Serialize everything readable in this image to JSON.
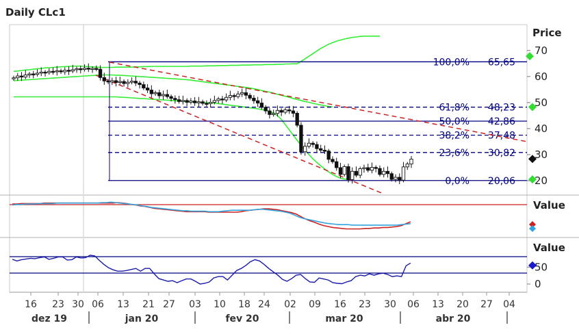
{
  "chart_data": [
    {
      "type": "candlestick",
      "title": "Daily CLc1",
      "y_axis_label": "Price",
      "ylim": [
        14,
        80
      ],
      "y_ticks": [
        20,
        30,
        40,
        50,
        60,
        70
      ],
      "x_day_ticks": [
        "16",
        "23",
        "30",
        "06",
        "13",
        "21",
        "27",
        "03",
        "10",
        "18",
        "24",
        "02",
        "09",
        "16",
        "23",
        "30",
        "06",
        "13",
        "20",
        "27",
        "04"
      ],
      "x_month_labels": [
        "dez 19",
        "jan 20",
        "fev 20",
        "mar 20",
        "abr 20"
      ],
      "close_price": 28.34,
      "fibonacci": [
        {
          "label": "100,0%",
          "value": "65,65",
          "level": 65.65,
          "style": "solid"
        },
        {
          "label": "61,8%",
          "value": "48,23",
          "level": 48.23,
          "style": "dashed"
        },
        {
          "label": "50,0%",
          "value": "42,86",
          "level": 42.86,
          "style": "solid"
        },
        {
          "label": "38,2%",
          "value": "37,48",
          "level": 37.48,
          "style": "dashed"
        },
        {
          "label": "23,6%",
          "value": "30,82",
          "level": 30.82,
          "style": "dashed"
        },
        {
          "label": "0,0%",
          "value": "20,06",
          "level": 20.06,
          "style": "solid"
        }
      ],
      "closes": [
        59.5,
        60.2,
        59.8,
        60.6,
        61.0,
        60.8,
        61.3,
        61.7,
        61.5,
        62.0,
        61.9,
        62.2,
        61.8,
        62.4,
        62.1,
        62.6,
        63.0,
        62.7,
        63.2,
        62.9,
        63.1,
        62.8,
        59.6,
        58.3,
        57.9,
        58.4,
        57.7,
        58.1,
        57.3,
        57.8,
        58.2,
        57.5,
        56.9,
        55.6,
        54.8,
        53.4,
        53.8,
        52.6,
        53.1,
        52.3,
        51.6,
        51.1,
        50.4,
        50.8,
        50.1,
        50.6,
        49.9,
        50.3,
        49.7,
        49.6,
        50.1,
        50.8,
        51.4,
        51.0,
        52.0,
        52.7,
        52.3,
        53.3,
        53.8,
        52.8,
        51.7,
        50.7,
        49.8,
        48.2,
        46.8,
        45.4,
        45.8,
        47.0,
        46.3,
        47.2,
        46.8,
        45.9,
        41.3,
        31.1,
        33.2,
        34.4,
        33.9,
        32.3,
        31.7,
        31.4,
        28.2,
        27.3,
        25.0,
        22.4,
        25.4,
        20.4,
        23.6,
        22.1,
        24.6,
        25.0,
        24.0,
        25.1,
        24.7,
        22.4,
        23.6,
        22.7,
        20.5,
        21.3,
        20.2,
        25.3,
        26.4,
        28.3
      ],
      "series": [
        {
          "name": "Upper band",
          "values": [
            62.0,
            62.1,
            62.3,
            62.5,
            62.6,
            62.8,
            63.0,
            63.1,
            63.3,
            63.4,
            63.5,
            63.6,
            63.7,
            63.8,
            63.9,
            64.0,
            64.0,
            64.0,
            63.9,
            63.8,
            63.7,
            63.6,
            63.5,
            63.5,
            63.5,
            63.5,
            63.6,
            63.6,
            63.6,
            63.6,
            63.6,
            63.7,
            63.7,
            63.8,
            63.8,
            63.9,
            63.9,
            63.9,
            63.9,
            63.9,
            63.9,
            63.9,
            63.9,
            63.9,
            63.9,
            64.0,
            64.0,
            64.0,
            64.0,
            64.1,
            64.1,
            64.1,
            64.2,
            64.2,
            64.2,
            64.3,
            64.3,
            64.3,
            64.4,
            64.4,
            64.4,
            64.5,
            64.5,
            64.5,
            64.6,
            64.6,
            64.6,
            64.7,
            64.7,
            64.8,
            64.8,
            64.9,
            64.9,
            65.8,
            66.8,
            67.8,
            68.8,
            69.8,
            70.8,
            71.6,
            72.4,
            73.0,
            73.6,
            74.0,
            74.4,
            74.7,
            75.0,
            75.2,
            75.4,
            75.5,
            75.5,
            75.5,
            75.5,
            75.5
          ]
        },
        {
          "name": "Middle band",
          "values": [
            58.4,
            58.5,
            58.6,
            58.7,
            58.8,
            58.9,
            59.0,
            59.1,
            59.2,
            59.3,
            59.4,
            59.5,
            59.6,
            59.7,
            59.8,
            59.9,
            60.0,
            60.1,
            60.2,
            60.3,
            60.4,
            60.5,
            60.6,
            60.6,
            60.6,
            60.6,
            60.5,
            60.5,
            60.4,
            60.3,
            60.2,
            60.1,
            60.0,
            59.9,
            59.8,
            59.7,
            59.6,
            59.5,
            59.4,
            59.3,
            59.2,
            59.1,
            59.0,
            58.9,
            58.8,
            58.6,
            58.4,
            58.2,
            58.0,
            57.8,
            57.6,
            57.4,
            57.2,
            57.0,
            56.8,
            56.6,
            56.4,
            56.2,
            56.0,
            55.8,
            55.6,
            55.3,
            55.0,
            54.6,
            54.3,
            54.0,
            53.6,
            53.2,
            52.8,
            52.4,
            52.0,
            51.6,
            51.2,
            50.8,
            50.4,
            50.1,
            49.7,
            49.4,
            49.1,
            48.8,
            48.5,
            48.3
          ]
        },
        {
          "name": "Lower band",
          "values": [
            52.2,
            52.2,
            52.2,
            52.2,
            52.2,
            52.2,
            52.2,
            52.2,
            52.2,
            52.2,
            52.2,
            52.2,
            52.2,
            52.2,
            52.2,
            52.2,
            52.2,
            52.2,
            52.2,
            52.2,
            52.2,
            52.2,
            52.2,
            52.2,
            52.2,
            52.2,
            52.2,
            52.1,
            52.0,
            51.9,
            51.8,
            51.7,
            51.6,
            51.5,
            51.4,
            51.3,
            51.2,
            51.1,
            51.0,
            50.9,
            50.8,
            50.7,
            50.6,
            50.5,
            50.4,
            50.3,
            50.2,
            50.1,
            50.0,
            49.9,
            49.8,
            49.7,
            49.6,
            49.4,
            49.2,
            49.0,
            48.8,
            48.6,
            48.4,
            48.2,
            48.0,
            47.8,
            47.6,
            47.3,
            47.0,
            46.6,
            46.0,
            45.0,
            43.5,
            41.5,
            39.5,
            37.5,
            35.5,
            33.6,
            31.8,
            30.0,
            28.4,
            27.0,
            25.7,
            24.5,
            23.4,
            22.4,
            21.6,
            21.0,
            20.6,
            20.6
          ]
        }
      ]
    },
    {
      "type": "line",
      "y_axis_label": "Value",
      "red": [
        57,
        57,
        58,
        58,
        58,
        58,
        58,
        59,
        59,
        59,
        59,
        59,
        59,
        59,
        59,
        59,
        59,
        59,
        59,
        59,
        59,
        59,
        59,
        60,
        59,
        58,
        56,
        55,
        53,
        52,
        50,
        48,
        47,
        46,
        45,
        44,
        43,
        42,
        41,
        41,
        41,
        41,
        41,
        40,
        40,
        40,
        40,
        40,
        40,
        40,
        41,
        43,
        44,
        45,
        46,
        47,
        47,
        46,
        45,
        43,
        41,
        39,
        36,
        31,
        26,
        22,
        19,
        15,
        12,
        10,
        8,
        7,
        6,
        5,
        5,
        5,
        5,
        6,
        6,
        7,
        7,
        8,
        8,
        9,
        10,
        12,
        16,
        20
      ],
      "blue": [
        55,
        56,
        56,
        57,
        57,
        57,
        58,
        58,
        58,
        58,
        59,
        59,
        59,
        59,
        59,
        59,
        59,
        59,
        59,
        59,
        60,
        60,
        61,
        60,
        59,
        58,
        57,
        56,
        55,
        53,
        52,
        50,
        49,
        48,
        47,
        46,
        45,
        44,
        43,
        43,
        42,
        42,
        42,
        42,
        41,
        41,
        41,
        42,
        43,
        44,
        44,
        44,
        44,
        44,
        45,
        46,
        46,
        45,
        44,
        43,
        42,
        40,
        38,
        34,
        30,
        27,
        25,
        23,
        21,
        19,
        17,
        16,
        15,
        14,
        14,
        14,
        13,
        13,
        13,
        13,
        13,
        13,
        13,
        13,
        13,
        13,
        13,
        14,
        15,
        16
      ]
    },
    {
      "type": "line",
      "y_axis_label": "Value",
      "y_ticks": [
        0,
        50
      ],
      "values": [
        73,
        68,
        72,
        74,
        76,
        75,
        78,
        80,
        73,
        76,
        80,
        80,
        71,
        72,
        80,
        77,
        78,
        85,
        83,
        70,
        58,
        48,
        42,
        38,
        38,
        40,
        43,
        46,
        38,
        46,
        46,
        30,
        16,
        12,
        8,
        10,
        4,
        10,
        15,
        15,
        8,
        0,
        2,
        6,
        18,
        22,
        22,
        12,
        26,
        40,
        46,
        55,
        66,
        72,
        68,
        58,
        46,
        36,
        26,
        14,
        8,
        16,
        26,
        28,
        16,
        6,
        5,
        18,
        15,
        12,
        4,
        2,
        1,
        6,
        10,
        22,
        26,
        24,
        30,
        26,
        30,
        32,
        28,
        22,
        24,
        22,
        54,
        62
      ]
    }
  ]
}
